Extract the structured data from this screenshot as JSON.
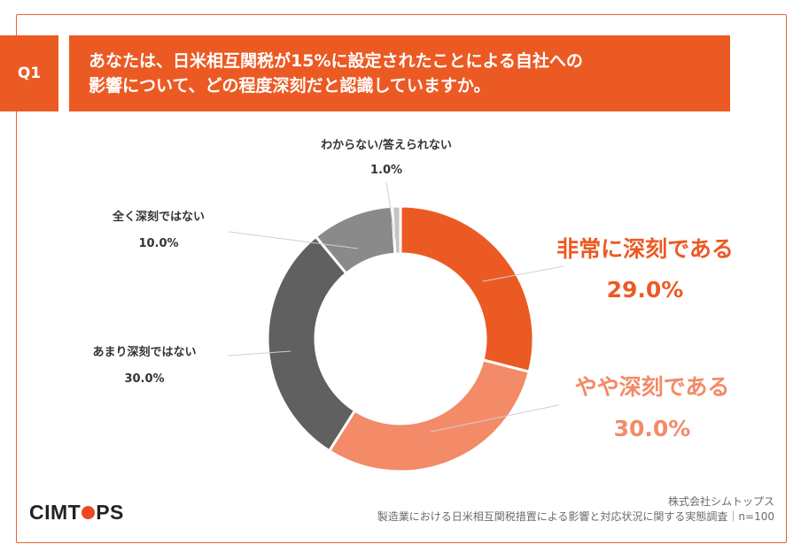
{
  "question": {
    "number": "Q1",
    "line1": "あなたは、日米相互関税が15%に設定されたことによる自社への",
    "line2": "影響について、どの程度深刻だと認識していますか。"
  },
  "colors": {
    "accent": "#ec5a24",
    "very_serious": "#ec5a24",
    "somewhat_serious": "#f38a68",
    "not_very_serious": "#606060",
    "not_serious_at_all": "#8a8a8a",
    "dont_know": "#c4c4c4"
  },
  "chart_data": {
    "type": "pie",
    "donut": true,
    "unit": "%",
    "slices": [
      {
        "label": "非常に深刻である",
        "value": 29.0,
        "value_label": "29.0%"
      },
      {
        "label": "やや深刻である",
        "value": 30.0,
        "value_label": "30.0%"
      },
      {
        "label": "あまり深刻ではない",
        "value": 30.0,
        "value_label": "30.0%"
      },
      {
        "label": "全く深刻ではない",
        "value": 10.0,
        "value_label": "10.0%"
      },
      {
        "label": "わからない/答えられない",
        "value": 1.0,
        "value_label": "1.0%"
      }
    ]
  },
  "logo": {
    "text_before": "CIMT",
    "text_after": "PS"
  },
  "footer": {
    "company": "株式会社シムトップス",
    "survey": "製造業における日米相互関税措置による影響と対応状況に関する実態調査｜n=100"
  }
}
